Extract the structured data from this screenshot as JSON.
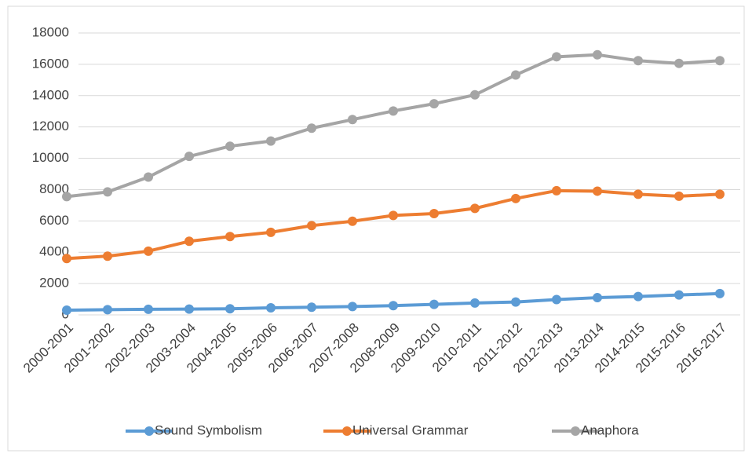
{
  "chart_data": {
    "type": "line",
    "categories": [
      "2000-2001",
      "2001-2002",
      "2002-2003",
      "2003-2004",
      "2004-2005",
      "2005-2006",
      "2006-2007",
      "2007-2008",
      "2008-2009",
      "2009-2010",
      "2010-2011",
      "2011-2012",
      "2012-2013",
      "2013-2014",
      "2014-2015",
      "2015-2016",
      "2016-2017"
    ],
    "series": [
      {
        "name": "Sound Symbolism",
        "color": "#5b9bd5",
        "values": [
          300,
          330,
          360,
          370,
          390,
          450,
          490,
          530,
          590,
          670,
          760,
          820,
          980,
          1100,
          1170,
          1270,
          1360
        ]
      },
      {
        "name": "Universal Grammar",
        "color": "#ed7d31",
        "values": [
          3600,
          3750,
          4070,
          4700,
          5000,
          5270,
          5700,
          5980,
          6350,
          6470,
          6800,
          7430,
          7930,
          7900,
          7700,
          7580,
          7700
        ]
      },
      {
        "name": "Anaphora",
        "color": "#a5a5a5",
        "values": [
          7550,
          7850,
          8800,
          10120,
          10770,
          11100,
          11920,
          12470,
          13020,
          13480,
          14050,
          15320,
          16480,
          16610,
          16230,
          16060,
          16230
        ]
      }
    ],
    "ylim": [
      0,
      18000
    ],
    "yticks": [
      0,
      2000,
      4000,
      6000,
      8000,
      10000,
      12000,
      14000,
      16000,
      18000
    ],
    "grid": true,
    "legend": "bottom"
  }
}
